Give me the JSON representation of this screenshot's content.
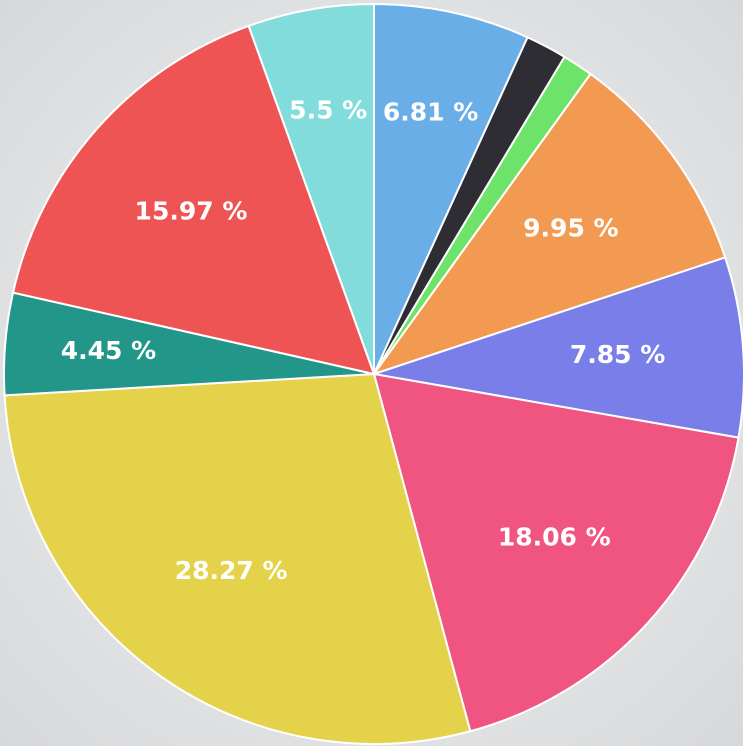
{
  "chart_data": {
    "type": "pie",
    "values": [
      6.81,
      1.8,
      1.34,
      9.95,
      7.85,
      18.06,
      28.27,
      4.45,
      15.97,
      5.5
    ],
    "value_labels": [
      "6.81 %",
      null,
      null,
      "9.95 %",
      "7.85 %",
      "18.06 %",
      "28.27 %",
      "4.45 %",
      "15.97 %",
      "5.5 %"
    ],
    "colors": [
      "#6aaee8",
      "#2d2d33",
      "#6ee36a",
      "#f39a52",
      "#7a7ee8",
      "#ef5580",
      "#e3d24a",
      "#23968a",
      "#ef5454",
      "#82dcdc"
    ]
  }
}
